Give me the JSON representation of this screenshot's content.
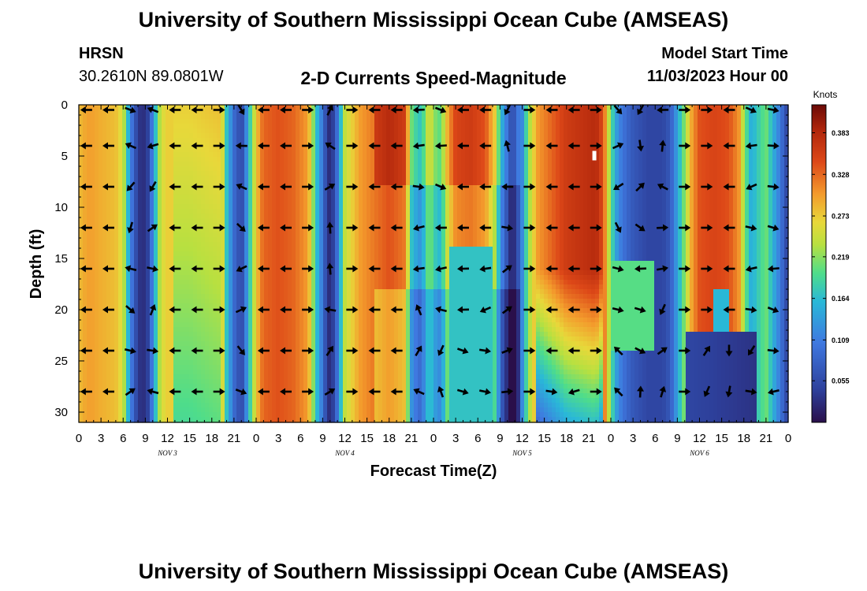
{
  "page": {
    "title_top": "University of Southern Mississippi Ocean Cube (AMSEAS)",
    "title_bottom": "University of Southern Mississippi Ocean Cube (AMSEAS)",
    "station": "HRSN",
    "coords": "30.2610N  89.0801W",
    "model_start_label": "Model Start Time",
    "model_start_value": "11/03/2023 Hour 00"
  },
  "chart_data": {
    "type": "heatmap",
    "title": "2-D Currents Speed-Magnitude",
    "xlabel": "Forecast Time(Z)",
    "ylabel": "Depth (ft)",
    "x_range_hours": [
      0,
      96
    ],
    "y_range_ft": [
      0,
      31
    ],
    "x_tick_labels": [
      "0",
      "3",
      "6",
      "9",
      "12",
      "15",
      "18",
      "21",
      "0",
      "3",
      "6",
      "9",
      "12",
      "15",
      "18",
      "21",
      "0",
      "3",
      "6",
      "9",
      "12",
      "15",
      "18",
      "21",
      "0",
      "3",
      "6",
      "9",
      "12",
      "15",
      "18",
      "21",
      "0"
    ],
    "y_ticks": [
      0,
      5,
      10,
      15,
      20,
      25,
      30
    ],
    "day_labels": [
      {
        "hour": 12,
        "text": "NOV 3"
      },
      {
        "hour": 36,
        "text": "NOV 4"
      },
      {
        "hour": 60,
        "text": "NOV 5"
      },
      {
        "hour": 84,
        "text": "NOV 6"
      }
    ],
    "colorbar": {
      "units": "Knots",
      "ticks": [
        "0.383",
        "0.328",
        "0.273",
        "0.219",
        "0.164",
        "0.109",
        "0.055"
      ],
      "min": 0.0,
      "max": 0.42,
      "tick_values": [
        0.383,
        0.328,
        0.273,
        0.219,
        0.164,
        0.109,
        0.055
      ]
    },
    "speed_profile_hours": [
      0,
      0.5,
      1.5,
      3,
      5,
      6,
      6.5,
      7,
      7.5,
      8.5,
      9.5,
      10,
      10.5,
      11,
      11.5,
      12,
      15,
      19,
      19.5,
      20,
      21,
      22,
      22.5,
      23,
      23.5,
      24,
      24.5,
      25,
      27,
      29,
      31,
      31.5,
      32,
      33,
      33.5,
      34,
      34.5,
      35,
      35.5,
      36,
      38,
      42,
      44,
      44.5,
      45,
      46,
      46.5,
      47,
      47.5,
      48,
      49,
      50,
      51,
      53,
      55,
      56.5,
      57,
      58,
      58.5,
      59,
      59.5,
      60,
      60.5,
      61,
      62,
      66,
      70,
      71,
      71.5,
      72,
      73,
      74,
      75,
      77,
      79,
      80,
      81,
      82,
      83,
      84,
      86,
      88,
      89.5,
      90,
      91,
      92,
      93,
      94,
      95,
      96
    ],
    "speed_profile_values": [
      0.28,
      0.29,
      0.3,
      0.29,
      0.28,
      0.25,
      0.18,
      0.12,
      0.07,
      0.02,
      0.05,
      0.12,
      0.18,
      0.24,
      0.26,
      0.27,
      0.27,
      0.28,
      0.25,
      0.17,
      0.09,
      0.05,
      0.1,
      0.16,
      0.22,
      0.27,
      0.31,
      0.33,
      0.34,
      0.33,
      0.3,
      0.25,
      0.18,
      0.1,
      0.05,
      0.02,
      0.05,
      0.1,
      0.17,
      0.24,
      0.3,
      0.34,
      0.32,
      0.26,
      0.17,
      0.13,
      0.14,
      0.19,
      0.22,
      0.18,
      0.16,
      0.26,
      0.31,
      0.32,
      0.3,
      0.22,
      0.13,
      0.06,
      0.02,
      0.03,
      0.07,
      0.12,
      0.18,
      0.23,
      0.3,
      0.36,
      0.38,
      0.34,
      0.27,
      0.2,
      0.12,
      0.09,
      0.07,
      0.05,
      0.05,
      0.07,
      0.14,
      0.22,
      0.3,
      0.34,
      0.35,
      0.34,
      0.3,
      0.22,
      0.15,
      0.18,
      0.21,
      0.15,
      0.1,
      0.04
    ],
    "vector_grid": {
      "hours": [
        1,
        4,
        7,
        10,
        13,
        16,
        19,
        22,
        25,
        28,
        31,
        34,
        37,
        40,
        43,
        46,
        49,
        52,
        55,
        58,
        61,
        64,
        67,
        70,
        73,
        76,
        79,
        82,
        85,
        88,
        91,
        94
      ],
      "depths_ft": [
        0.5,
        4,
        8,
        12,
        16,
        20,
        24,
        28
      ],
      "direction": "arrows show current direction at each grid point (mostly westward/eastward, rotating in low-speed zones)"
    }
  }
}
